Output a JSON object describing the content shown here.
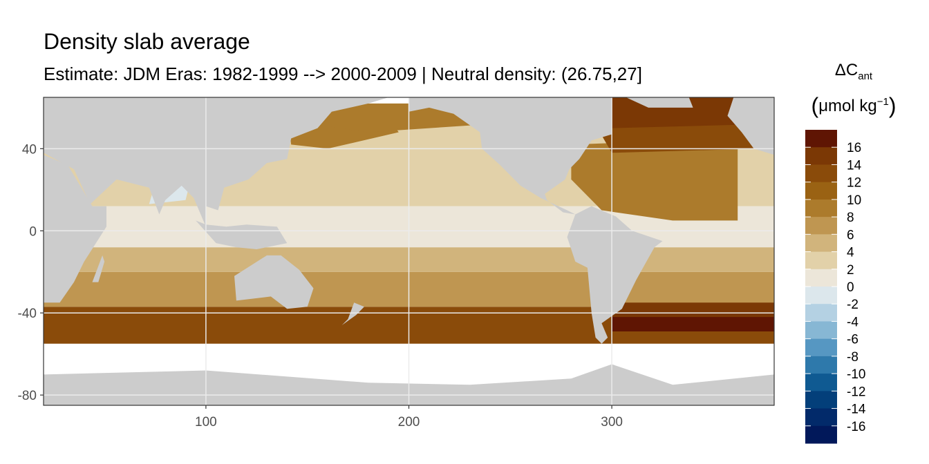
{
  "chart_data": {
    "type": "heatmap",
    "title": "Density slab average",
    "subtitle": "Estimate: JDM Eras: 1982-1999 --> 2000-2009 | Neutral density: (26.75,27]",
    "xlabel": "",
    "ylabel": "",
    "xlim": [
      20,
      380
    ],
    "ylim": [
      -85,
      65
    ],
    "x_ticks": [
      100,
      200,
      300
    ],
    "y_ticks": [
      40,
      0,
      -40,
      -80
    ],
    "grid": true,
    "legend": {
      "position": "right",
      "title_main": "ΔC",
      "title_sub": "ant",
      "unit_main": "μmol kg",
      "unit_sup": "−1",
      "labels": [
        "16",
        "14",
        "12",
        "10",
        "8",
        "6",
        "4",
        "2",
        "0",
        "-2",
        "-4",
        "-6",
        "-8",
        "-10",
        "-12",
        "-14",
        "-16"
      ],
      "bins": [
        {
          "range": [
            16,
            18
          ],
          "color": "#5f1503"
        },
        {
          "range": [
            14,
            16
          ],
          "color": "#7b3805"
        },
        {
          "range": [
            12,
            14
          ],
          "color": "#8a4b0a"
        },
        {
          "range": [
            10,
            12
          ],
          "color": "#9a6213"
        },
        {
          "range": [
            8,
            10
          ],
          "color": "#ac7b2c"
        },
        {
          "range": [
            6,
            8
          ],
          "color": "#bf9651"
        },
        {
          "range": [
            4,
            6
          ],
          "color": "#d1b47c"
        },
        {
          "range": [
            2,
            4
          ],
          "color": "#e2d1a9"
        },
        {
          "range": [
            0,
            2
          ],
          "color": "#ece6d9"
        },
        {
          "range": [
            -2,
            0
          ],
          "color": "#dce7ec"
        },
        {
          "range": [
            -4,
            -2
          ],
          "color": "#b4d1e3"
        },
        {
          "range": [
            -6,
            -4
          ],
          "color": "#87b7d4"
        },
        {
          "range": [
            -8,
            -6
          ],
          "color": "#5697c2"
        },
        {
          "range": [
            -10,
            -8
          ],
          "color": "#2e79ab"
        },
        {
          "range": [
            -12,
            -10
          ],
          "color": "#0f5a92"
        },
        {
          "range": [
            -14,
            -12
          ],
          "color": "#033f7a"
        },
        {
          "range": [
            -16,
            -14
          ],
          "color": "#022a6a"
        },
        {
          "range": [
            -18,
            -16
          ],
          "color": "#01185a"
        }
      ]
    },
    "zones": [
      {
        "region": "Southern Ocean band, 45S-55S",
        "value": 13
      },
      {
        "region": "South Atlantic, 35S-50S",
        "value": 14
      },
      {
        "region": "South Atlantic, 50S (max)",
        "value": 17
      },
      {
        "region": "South Pacific / Indian, 20S-40S",
        "value": 7
      },
      {
        "region": "Subtropical South, 10S-25S",
        "value": 5
      },
      {
        "region": "Equatorial Pacific",
        "value": 1
      },
      {
        "region": "North Pacific subtropical gyre",
        "value": 3
      },
      {
        "region": "Northwest Pacific, Kuroshio",
        "value": 9
      },
      {
        "region": "North Atlantic, 20N-40N",
        "value": 8
      },
      {
        "region": "North Atlantic, 40N-55N",
        "value": 12
      },
      {
        "region": "Northernmost Atlantic",
        "value": 14
      },
      {
        "region": "Arabian Sea",
        "value": -1
      }
    ],
    "colors": {
      "land": "#cccccc",
      "missing": "#ffffff",
      "grid": "#ebebeb",
      "axis_text": "#4d4d4d",
      "border": "#333333"
    }
  }
}
